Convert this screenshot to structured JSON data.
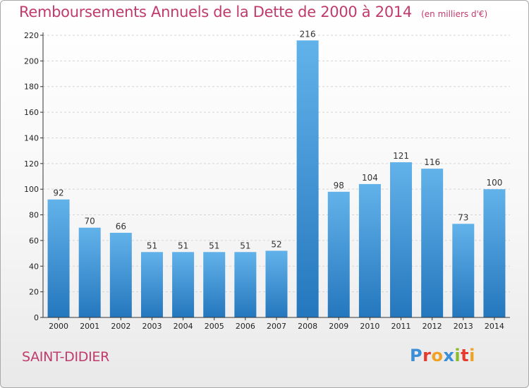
{
  "title": {
    "main": "Remboursements Annuels de la Dette de 2000 à 2014",
    "unit": "(en milliers d'€)"
  },
  "commune": "SAINT-DIDIER",
  "brand": {
    "name": "Proxiti",
    "letters": [
      {
        "char": "P",
        "color": "#3a8fd6"
      },
      {
        "char": "r",
        "color": "#e63a2e"
      },
      {
        "char": "o",
        "color": "#f0a323"
      },
      {
        "char": "x",
        "color": "#3a8fd6"
      },
      {
        "char": "i",
        "color": "#8bbb2b"
      },
      {
        "char": "t",
        "color": "#e63a2e"
      },
      {
        "char": "i",
        "color": "#f0a323"
      }
    ]
  },
  "colors": {
    "title": "#c03b6c",
    "bar_top": "#62b2ea",
    "bar_bottom": "#2477bd",
    "grid": "#d5d5d5",
    "axis": "#333333"
  },
  "chart_data": {
    "type": "bar",
    "title": "Remboursements Annuels de la Dette de 2000 à 2014",
    "ylabel": "(en milliers d'€)",
    "xlabel": "",
    "categories": [
      "2000",
      "2001",
      "2002",
      "2003",
      "2004",
      "2005",
      "2006",
      "2007",
      "2008",
      "2009",
      "2010",
      "2011",
      "2012",
      "2013",
      "2014"
    ],
    "values": [
      92,
      70,
      66,
      51,
      51,
      51,
      51,
      52,
      216,
      98,
      104,
      121,
      116,
      73,
      100
    ],
    "ylim": [
      0,
      220
    ],
    "yticks": [
      0,
      20,
      40,
      60,
      80,
      100,
      120,
      140,
      160,
      180,
      200,
      220
    ],
    "grid": true,
    "data_labels": true
  }
}
